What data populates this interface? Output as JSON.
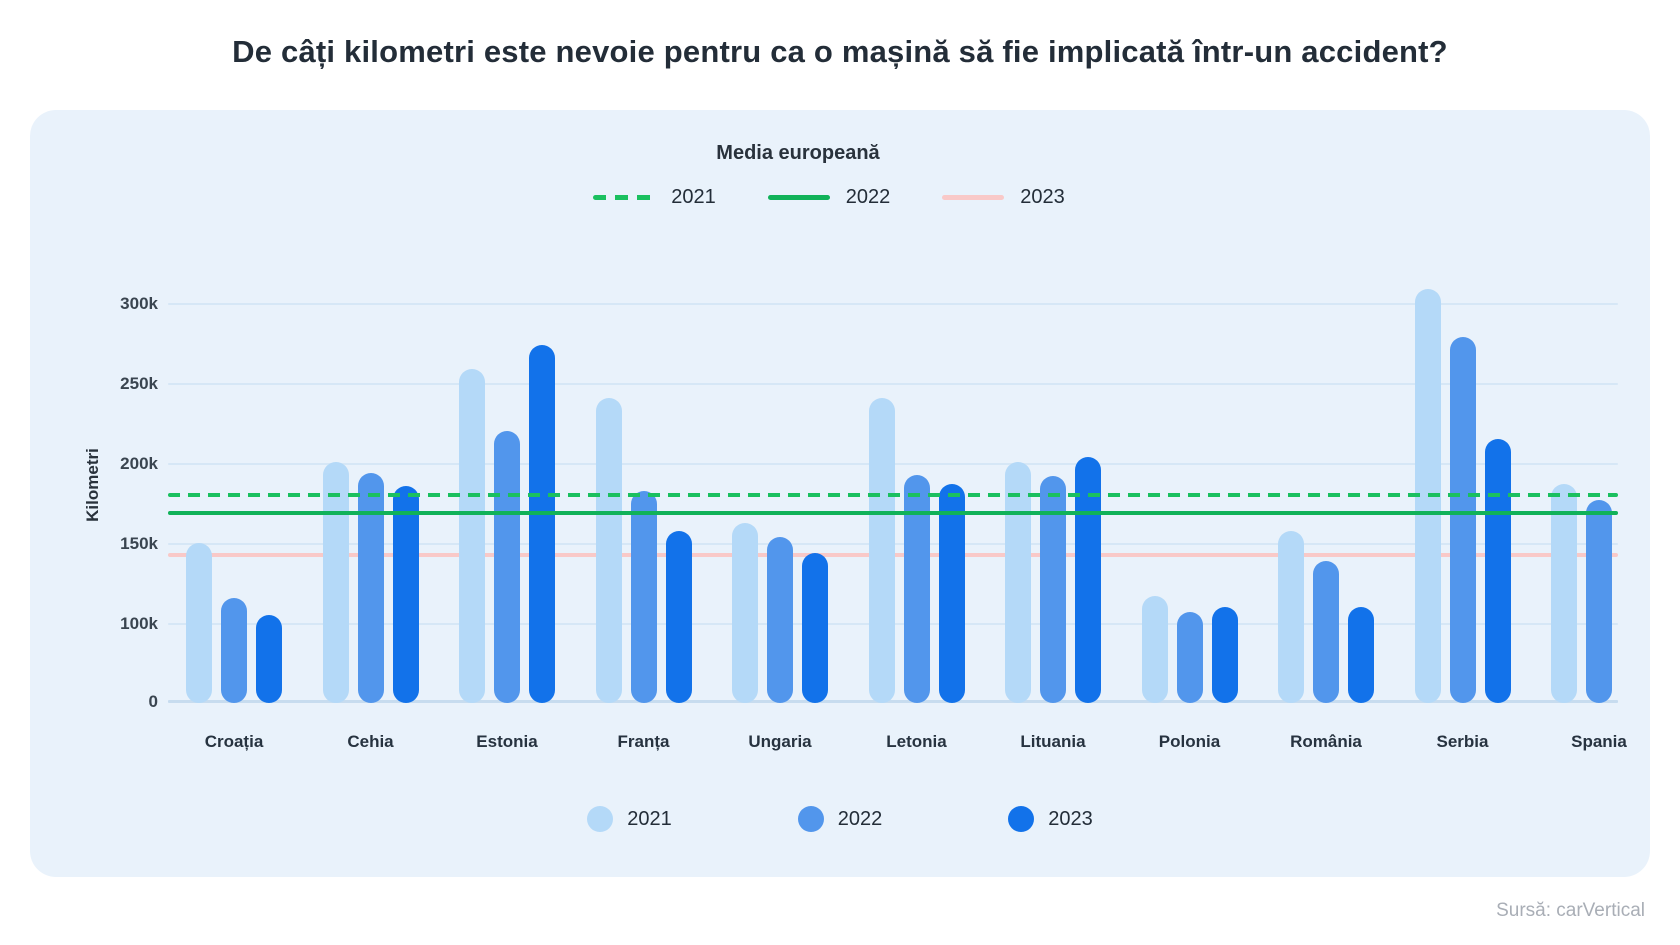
{
  "title": "De câți kilometri este nevoie pentru ca o mașină să fie implicată într-un accident?",
  "avg_legend": {
    "title": "Media europeană",
    "items": [
      {
        "year": "2021",
        "style": "dashed",
        "color": "#1ac05f"
      },
      {
        "year": "2022",
        "style": "solid",
        "color": "#10b259"
      },
      {
        "year": "2023",
        "style": "solid",
        "color": "#f9c9c8"
      }
    ]
  },
  "chart_data": {
    "type": "bar",
    "title": "De câți kilometri este nevoie pentru ca o mașină să fie implicată într-un accident?",
    "ylabel": "Kilometri",
    "xlabel": "",
    "grid": true,
    "legend_position": "bottom",
    "yticks": [
      {
        "label": "0",
        "km": 0
      },
      {
        "label": "100k",
        "km": 100000
      },
      {
        "label": "150k",
        "km": 150000
      },
      {
        "label": "200k",
        "km": 200000
      },
      {
        "label": "250k",
        "km": 250000
      },
      {
        "label": "300k",
        "km": 300000
      }
    ],
    "categories": [
      "Croația",
      "Cehia",
      "Estonia",
      "Franța",
      "Ungaria",
      "Letonia",
      "Lituania",
      "Polonia",
      "România",
      "Serbia",
      "Spania"
    ],
    "series": [
      {
        "name": "2021",
        "color": "#b4d9f8",
        "values_km": [
          151000,
          202000,
          260000,
          242000,
          164000,
          242000,
          202000,
          118000,
          159000,
          310000,
          188000
        ]
      },
      {
        "name": "2022",
        "color": "#5296ec",
        "values_km": [
          117000,
          195000,
          221000,
          184000,
          155000,
          194000,
          193000,
          108000,
          140000,
          280000,
          178000
        ]
      },
      {
        "name": "2023",
        "color": "#1272ea",
        "values_km": [
          106000,
          187000,
          275000,
          159000,
          145000,
          188000,
          205000,
          111000,
          111000,
          216000,
          null
        ]
      }
    ],
    "reference_lines": [
      {
        "name": "Media europeană 2021",
        "value_km": 181000,
        "style": "dashed",
        "color": "#1ac05f",
        "layer": "front"
      },
      {
        "name": "Media europeană 2022",
        "value_km": 170000,
        "style": "solid",
        "color": "#10b259",
        "layer": "front"
      },
      {
        "name": "Media europeană 2023",
        "value_km": 144000,
        "style": "solid",
        "color": "#f9c9c8",
        "layer": "back"
      }
    ]
  },
  "source": "Sursă: carVertical",
  "colors": {
    "panel_background": "#e9f2fb",
    "gridline": "#d6e7f6",
    "baseline": "#c7dcef",
    "title_text": "#232d38",
    "axis_text": "#3a4550",
    "source_text": "#a9aeb6"
  }
}
